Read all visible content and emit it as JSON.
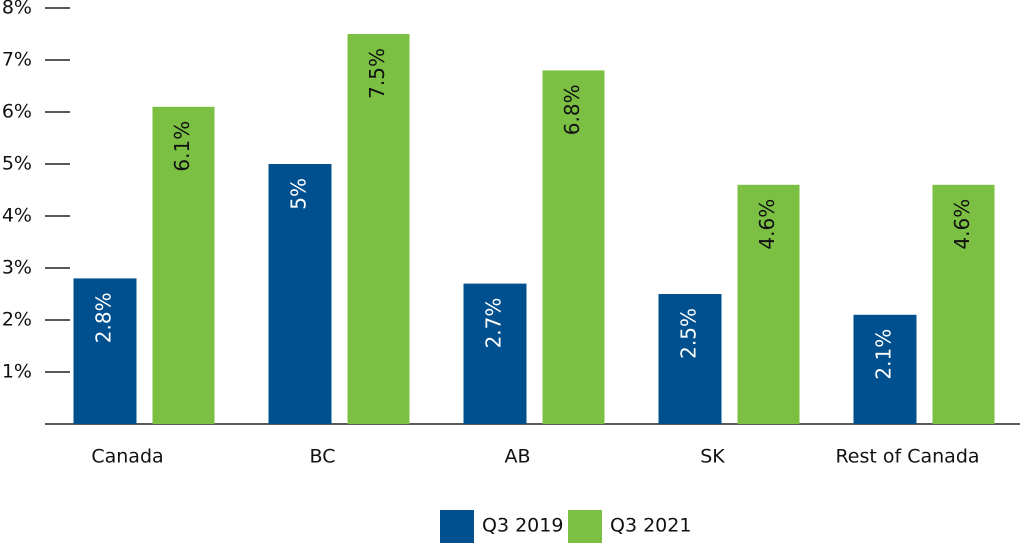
{
  "chart_data": {
    "type": "bar",
    "categories": [
      "Canada",
      "BC",
      "AB",
      "SK",
      "Rest of Canada"
    ],
    "series": [
      {
        "name": "Q3 2019",
        "color": "#00508f",
        "values": [
          2.8,
          5,
          2.7,
          2.5,
          2.1
        ],
        "value_labels": [
          "2.8%",
          "5%",
          "2.7%",
          "2.5%",
          "2.1%"
        ]
      },
      {
        "name": "Q3 2021",
        "color": "#7bc043",
        "values": [
          6.1,
          7.5,
          6.8,
          4.6,
          4.6
        ],
        "value_labels": [
          "6.1%",
          "7.5%",
          "6.8%",
          "4.6%",
          "4.6%"
        ]
      }
    ],
    "ylim": [
      0,
      8
    ],
    "yticks": [
      {
        "value": 1,
        "label": "1%"
      },
      {
        "value": 2,
        "label": "2%"
      },
      {
        "value": 3,
        "label": "3%"
      },
      {
        "value": 4,
        "label": "4%"
      },
      {
        "value": 5,
        "label": "5%"
      },
      {
        "value": 6,
        "label": "6%"
      },
      {
        "value": 7,
        "label": "7%"
      },
      {
        "value": 8,
        "label": "8%"
      }
    ],
    "legend": "bottom"
  }
}
